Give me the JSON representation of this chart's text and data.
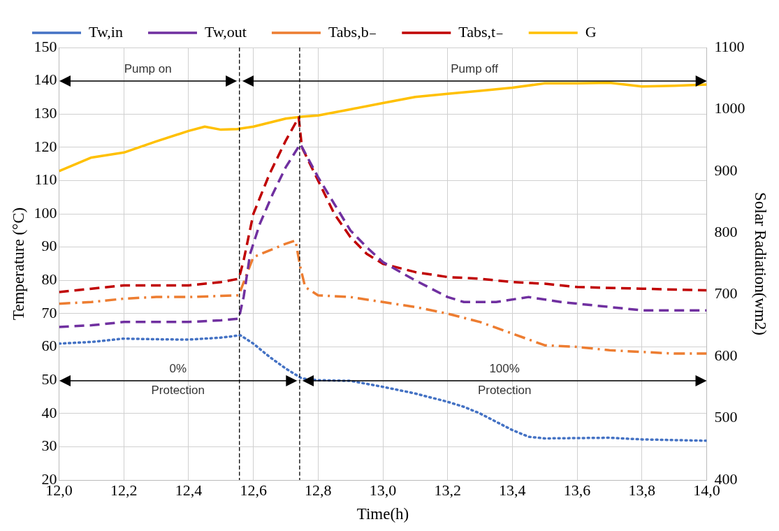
{
  "chart_data": {
    "type": "line",
    "xlabel": "Time(h)",
    "ylabel": "Temperature (°C)",
    "y2label": "Solar Radiation(wm2)",
    "xlim": [
      12,
      14
    ],
    "xticks": [
      {
        "value": 12,
        "label": "12,0"
      },
      {
        "value": 12.2,
        "label": "12,2"
      },
      {
        "value": 12.4,
        "label": "12,4"
      },
      {
        "value": 12.6,
        "label": "12,6"
      },
      {
        "value": 12.8,
        "label": "12,8"
      },
      {
        "value": 13,
        "label": "13,0"
      },
      {
        "value": 13.2,
        "label": "13,2"
      },
      {
        "value": 13.4,
        "label": "13,4"
      },
      {
        "value": 13.6,
        "label": "13,6"
      },
      {
        "value": 13.8,
        "label": "13,8"
      },
      {
        "value": 14,
        "label": "14,0"
      }
    ],
    "ylim": [
      20,
      150
    ],
    "yticks": [
      20,
      30,
      40,
      50,
      60,
      70,
      80,
      90,
      100,
      110,
      120,
      130,
      140,
      150
    ],
    "y2lim": [
      400,
      1100
    ],
    "y2ticks": [
      400,
      500,
      600,
      700,
      800,
      900,
      1000,
      1100
    ],
    "grid": true,
    "legend": "top",
    "marker": "none",
    "series": [
      {
        "name": "Tw,in",
        "color": "#4472c4",
        "line_style": "dotted",
        "x": [
          12,
          12.1,
          12.2,
          12.3,
          12.4,
          12.5,
          12.56,
          12.6,
          12.65,
          12.7,
          12.75,
          12.8,
          12.9,
          13,
          13.1,
          13.2,
          13.25,
          13.3,
          13.4,
          13.45,
          13.5,
          13.7,
          13.8,
          14
        ],
        "values": [
          61,
          61.5,
          62.5,
          62.3,
          62.2,
          62.8,
          63.5,
          61,
          57,
          53.5,
          50.5,
          50,
          49.8,
          48,
          46,
          43.5,
          42,
          40,
          35,
          33,
          32.5,
          32.7,
          32.2,
          31.8
        ]
      },
      {
        "name": "Tw,out",
        "color": "#7030a0",
        "line_style": "dashed",
        "x": [
          12,
          12.1,
          12.2,
          12.3,
          12.4,
          12.5,
          12.555,
          12.57,
          12.59,
          12.62,
          12.66,
          12.7,
          12.745,
          12.8,
          12.85,
          12.9,
          12.95,
          13,
          13.1,
          13.2,
          13.25,
          13.35,
          13.45,
          13.55,
          13.7,
          13.8,
          14
        ],
        "values": [
          66,
          66.5,
          67.5,
          67.5,
          67.5,
          68,
          68.5,
          75,
          88,
          97,
          106,
          114,
          121,
          111,
          103,
          95,
          90,
          85.5,
          80,
          75,
          73.5,
          73.5,
          75,
          73.5,
          72,
          71,
          71
        ]
      },
      {
        "name": "Tabs,b₋",
        "color": "#ed7d31",
        "line_style": "dashdot",
        "x": [
          12,
          12.1,
          12.2,
          12.3,
          12.4,
          12.555,
          12.58,
          12.6,
          12.7,
          12.73,
          12.745,
          12.76,
          12.8,
          12.9,
          13,
          13.1,
          13.2,
          13.3,
          13.4,
          13.5,
          13.6,
          13.7,
          13.8,
          13.9,
          14
        ],
        "values": [
          73,
          73.5,
          74.5,
          75,
          75,
          75.5,
          82,
          87,
          91,
          92,
          84,
          78,
          75.5,
          75,
          73.5,
          72,
          70,
          67.5,
          64,
          60.5,
          60,
          59,
          58.5,
          58,
          58
        ]
      },
      {
        "name": "Tabs,t₋",
        "color": "#c00000",
        "line_style": "dashed",
        "x": [
          12,
          12.1,
          12.2,
          12.4,
          12.5,
          12.555,
          12.57,
          12.6,
          12.65,
          12.7,
          12.74,
          12.75,
          12.8,
          12.85,
          12.9,
          12.95,
          13,
          13.1,
          13.2,
          13.3,
          13.4,
          13.5,
          13.6,
          13.8,
          14
        ],
        "values": [
          76.5,
          77.5,
          78.5,
          78.5,
          79.5,
          80.5,
          86,
          100,
          112,
          122,
          129,
          120,
          110,
          100,
          93,
          88,
          85,
          82.5,
          81,
          80.5,
          79.5,
          79,
          78,
          77.5,
          77
        ]
      },
      {
        "name": "G",
        "color": "#ffc000",
        "line_style": "solid",
        "axis": "y2",
        "x": [
          12,
          12.1,
          12.2,
          12.3,
          12.4,
          12.45,
          12.5,
          12.55,
          12.6,
          12.7,
          12.75,
          12.8,
          12.9,
          13,
          13.1,
          13.2,
          13.3,
          13.4,
          13.5,
          13.6,
          13.7,
          13.8,
          13.9,
          14
        ],
        "values": [
          900,
          922,
          930,
          948,
          965,
          972,
          967,
          968,
          972,
          985,
          988,
          990,
          1000,
          1010,
          1020,
          1025,
          1030,
          1035,
          1042,
          1042,
          1043,
          1037,
          1038,
          1040
        ]
      }
    ],
    "ref_lines": [
      {
        "axis": "x",
        "value": 12.557,
        "color": "#000000",
        "line_style": "dashed"
      },
      {
        "axis": "x",
        "value": 12.743,
        "color": "#000000",
        "line_style": "dashed"
      }
    ],
    "annotations": [
      "Pump on",
      "Pump off",
      "0%\nProtection",
      "100%\nProtection"
    ]
  }
}
